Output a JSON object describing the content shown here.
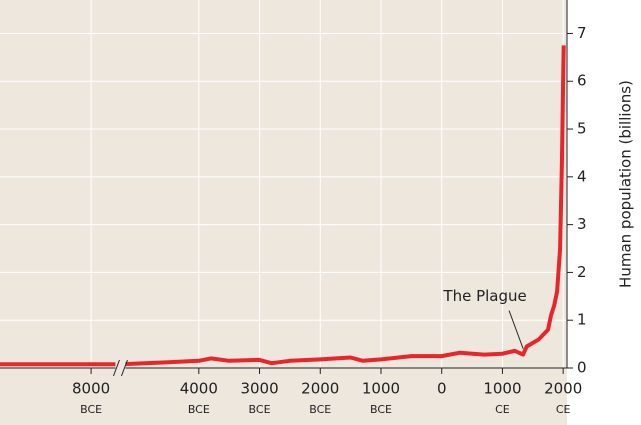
{
  "chart_data": {
    "type": "line",
    "ylabel": "Human population (billions)",
    "x": [
      -9500,
      -8000,
      -7500,
      -4500,
      -4000,
      -3800,
      -3500,
      -3000,
      -2800,
      -2500,
      -2000,
      -1500,
      -1300,
      -1000,
      -500,
      0,
      300,
      700,
      1000,
      1200,
      1340,
      1400,
      1600,
      1750,
      1800,
      1850,
      1900,
      1950,
      1980,
      2000,
      2008
    ],
    "series": [
      {
        "name": "Human population",
        "color": "#e8262a",
        "values": [
          0.08,
          0.08,
          0.08,
          0.12,
          0.15,
          0.2,
          0.15,
          0.17,
          0.1,
          0.15,
          0.18,
          0.22,
          0.15,
          0.18,
          0.25,
          0.25,
          0.32,
          0.28,
          0.3,
          0.36,
          0.28,
          0.45,
          0.6,
          0.8,
          1.1,
          1.3,
          1.6,
          2.5,
          4.4,
          6.1,
          6.75
        ]
      }
    ],
    "xlim": [
      -9500,
      2030
    ],
    "xbreak": [
      -7500,
      -4500
    ],
    "xticks": [
      {
        "value": -8000,
        "label": "8000",
        "era": "BCE"
      },
      {
        "value": -4000,
        "label": "4000",
        "era": "BCE"
      },
      {
        "value": -3000,
        "label": "3000",
        "era": "BCE"
      },
      {
        "value": -2000,
        "label": "2000",
        "era": "BCE"
      },
      {
        "value": -1000,
        "label": "1000",
        "era": "BCE"
      },
      {
        "value": 0,
        "label": "0"
      },
      {
        "value": 1000,
        "label": "1000",
        "era": "CE"
      },
      {
        "value": 2000,
        "label": "2000",
        "era": "CE"
      }
    ],
    "ylim": [
      0,
      7.7
    ],
    "yticks": [
      0,
      1,
      2,
      3,
      4,
      5,
      6,
      7
    ],
    "grid": true,
    "annotations": [
      {
        "text": "The Plague",
        "x": 1340,
        "y": 0.28
      }
    ]
  }
}
